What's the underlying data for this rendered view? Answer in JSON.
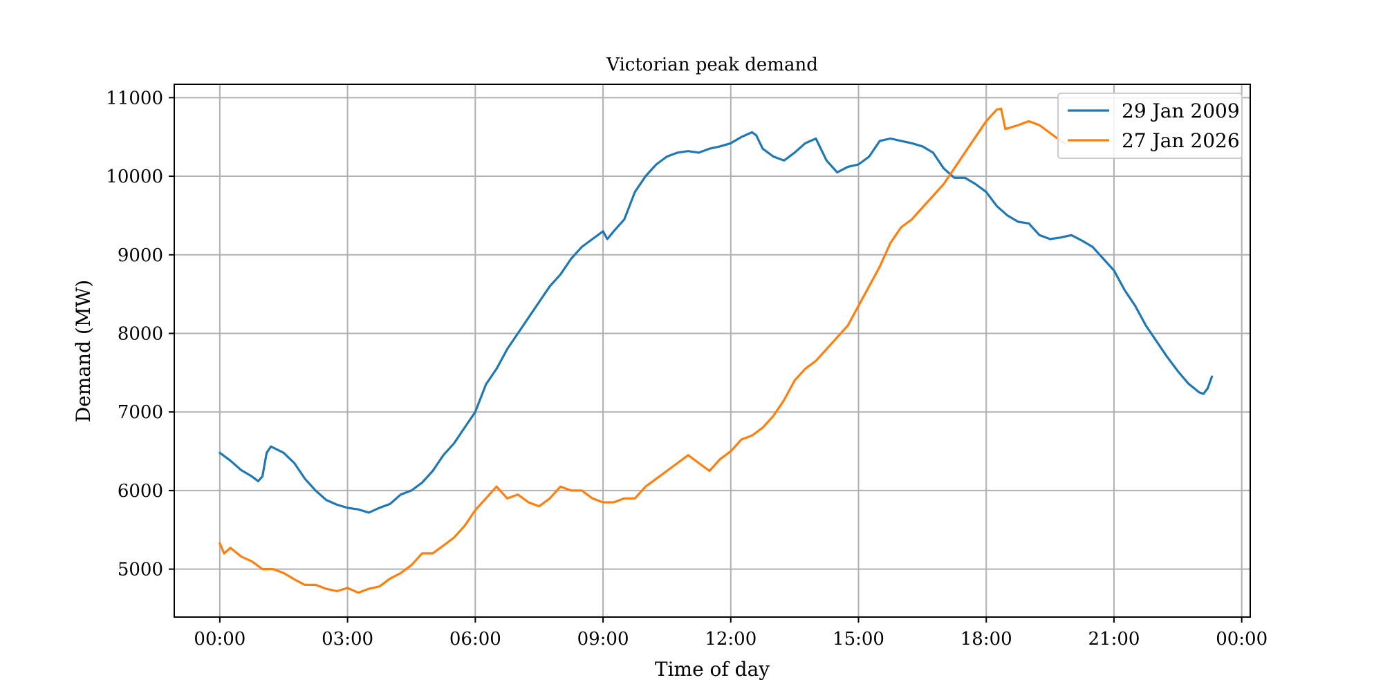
{
  "chart_data": {
    "type": "line",
    "title": "Victorian peak demand",
    "xlabel": "Time of day",
    "ylabel": "Demand (MW)",
    "x_tick_labels": [
      "00:00",
      "03:00",
      "06:00",
      "09:00",
      "12:00",
      "15:00",
      "18:00",
      "21:00",
      "00:00"
    ],
    "x_tick_hours": [
      0,
      3,
      6,
      9,
      12,
      15,
      18,
      21,
      24
    ],
    "xlim_hours": [
      -1.07,
      24.2
    ],
    "y_ticks": [
      5000,
      6000,
      7000,
      8000,
      9000,
      10000,
      11000
    ],
    "ylim": [
      4390,
      11170
    ],
    "grid": true,
    "legend_position": "top-right",
    "series": [
      {
        "name": "29 Jan 2009",
        "color": "#1f77b4",
        "points": [
          [
            0.0,
            6480
          ],
          [
            0.25,
            6380
          ],
          [
            0.5,
            6260
          ],
          [
            0.75,
            6180
          ],
          [
            0.9,
            6120
          ],
          [
            1.0,
            6180
          ],
          [
            1.1,
            6480
          ],
          [
            1.2,
            6560
          ],
          [
            1.5,
            6480
          ],
          [
            1.75,
            6350
          ],
          [
            2.0,
            6150
          ],
          [
            2.25,
            6000
          ],
          [
            2.5,
            5880
          ],
          [
            2.75,
            5820
          ],
          [
            3.0,
            5780
          ],
          [
            3.25,
            5760
          ],
          [
            3.5,
            5720
          ],
          [
            3.75,
            5780
          ],
          [
            4.0,
            5830
          ],
          [
            4.25,
            5950
          ],
          [
            4.5,
            6000
          ],
          [
            4.75,
            6100
          ],
          [
            5.0,
            6250
          ],
          [
            5.25,
            6450
          ],
          [
            5.5,
            6600
          ],
          [
            5.75,
            6800
          ],
          [
            6.0,
            7000
          ],
          [
            6.25,
            7350
          ],
          [
            6.5,
            7550
          ],
          [
            6.75,
            7800
          ],
          [
            7.0,
            8000
          ],
          [
            7.25,
            8200
          ],
          [
            7.5,
            8400
          ],
          [
            7.75,
            8600
          ],
          [
            8.0,
            8750
          ],
          [
            8.25,
            8950
          ],
          [
            8.5,
            9100
          ],
          [
            8.75,
            9200
          ],
          [
            9.0,
            9300
          ],
          [
            9.1,
            9200
          ],
          [
            9.25,
            9300
          ],
          [
            9.5,
            9450
          ],
          [
            9.75,
            9800
          ],
          [
            10.0,
            10000
          ],
          [
            10.25,
            10150
          ],
          [
            10.5,
            10250
          ],
          [
            10.75,
            10300
          ],
          [
            11.0,
            10320
          ],
          [
            11.25,
            10300
          ],
          [
            11.5,
            10350
          ],
          [
            11.75,
            10380
          ],
          [
            12.0,
            10420
          ],
          [
            12.25,
            10500
          ],
          [
            12.5,
            10560
          ],
          [
            12.6,
            10520
          ],
          [
            12.75,
            10350
          ],
          [
            13.0,
            10250
          ],
          [
            13.25,
            10200
          ],
          [
            13.5,
            10300
          ],
          [
            13.75,
            10420
          ],
          [
            14.0,
            10480
          ],
          [
            14.25,
            10200
          ],
          [
            14.5,
            10050
          ],
          [
            14.75,
            10120
          ],
          [
            15.0,
            10150
          ],
          [
            15.25,
            10250
          ],
          [
            15.5,
            10450
          ],
          [
            15.75,
            10480
          ],
          [
            16.0,
            10450
          ],
          [
            16.25,
            10420
          ],
          [
            16.5,
            10380
          ],
          [
            16.75,
            10300
          ],
          [
            17.0,
            10100
          ],
          [
            17.25,
            9980
          ],
          [
            17.5,
            9980
          ],
          [
            17.75,
            9900
          ],
          [
            18.0,
            9800
          ],
          [
            18.25,
            9620
          ],
          [
            18.5,
            9500
          ],
          [
            18.75,
            9420
          ],
          [
            19.0,
            9400
          ],
          [
            19.25,
            9250
          ],
          [
            19.5,
            9200
          ],
          [
            19.75,
            9220
          ],
          [
            20.0,
            9250
          ],
          [
            20.25,
            9180
          ],
          [
            20.5,
            9100
          ],
          [
            20.75,
            8950
          ],
          [
            21.0,
            8800
          ],
          [
            21.25,
            8550
          ],
          [
            21.5,
            8350
          ],
          [
            21.75,
            8100
          ],
          [
            22.0,
            7900
          ],
          [
            22.25,
            7700
          ],
          [
            22.5,
            7520
          ],
          [
            22.75,
            7360
          ],
          [
            23.0,
            7250
          ],
          [
            23.1,
            7230
          ],
          [
            23.2,
            7300
          ],
          [
            23.3,
            7450
          ]
        ]
      },
      {
        "name": "27 Jan 2026",
        "color": "#ff7f0e",
        "points": [
          [
            0.0,
            5330
          ],
          [
            0.1,
            5200
          ],
          [
            0.25,
            5270
          ],
          [
            0.5,
            5160
          ],
          [
            0.75,
            5100
          ],
          [
            1.0,
            5000
          ],
          [
            1.25,
            5000
          ],
          [
            1.5,
            4950
          ],
          [
            1.75,
            4870
          ],
          [
            2.0,
            4800
          ],
          [
            2.25,
            4800
          ],
          [
            2.5,
            4750
          ],
          [
            2.75,
            4720
          ],
          [
            3.0,
            4760
          ],
          [
            3.25,
            4700
          ],
          [
            3.5,
            4750
          ],
          [
            3.75,
            4780
          ],
          [
            4.0,
            4880
          ],
          [
            4.25,
            4950
          ],
          [
            4.5,
            5050
          ],
          [
            4.75,
            5200
          ],
          [
            5.0,
            5200
          ],
          [
            5.25,
            5300
          ],
          [
            5.5,
            5400
          ],
          [
            5.75,
            5550
          ],
          [
            6.0,
            5750
          ],
          [
            6.25,
            5900
          ],
          [
            6.5,
            6050
          ],
          [
            6.75,
            5900
          ],
          [
            7.0,
            5950
          ],
          [
            7.25,
            5850
          ],
          [
            7.5,
            5800
          ],
          [
            7.75,
            5900
          ],
          [
            8.0,
            6050
          ],
          [
            8.25,
            6000
          ],
          [
            8.5,
            6000
          ],
          [
            8.75,
            5900
          ],
          [
            9.0,
            5850
          ],
          [
            9.25,
            5850
          ],
          [
            9.5,
            5900
          ],
          [
            9.75,
            5900
          ],
          [
            10.0,
            6050
          ],
          [
            10.25,
            6150
          ],
          [
            10.5,
            6250
          ],
          [
            10.75,
            6350
          ],
          [
            11.0,
            6450
          ],
          [
            11.25,
            6350
          ],
          [
            11.5,
            6250
          ],
          [
            11.75,
            6400
          ],
          [
            12.0,
            6500
          ],
          [
            12.25,
            6650
          ],
          [
            12.5,
            6700
          ],
          [
            12.75,
            6800
          ],
          [
            13.0,
            6950
          ],
          [
            13.25,
            7150
          ],
          [
            13.5,
            7400
          ],
          [
            13.75,
            7550
          ],
          [
            14.0,
            7650
          ],
          [
            14.25,
            7800
          ],
          [
            14.5,
            7950
          ],
          [
            14.75,
            8100
          ],
          [
            15.0,
            8350
          ],
          [
            15.25,
            8600
          ],
          [
            15.5,
            8850
          ],
          [
            15.75,
            9150
          ],
          [
            16.0,
            9350
          ],
          [
            16.25,
            9450
          ],
          [
            16.5,
            9600
          ],
          [
            16.75,
            9750
          ],
          [
            17.0,
            9900
          ],
          [
            17.25,
            10100
          ],
          [
            17.5,
            10300
          ],
          [
            17.75,
            10500
          ],
          [
            18.0,
            10700
          ],
          [
            18.25,
            10850
          ],
          [
            18.35,
            10860
          ],
          [
            18.45,
            10600
          ],
          [
            18.75,
            10650
          ],
          [
            19.0,
            10700
          ],
          [
            19.25,
            10650
          ],
          [
            19.5,
            10550
          ],
          [
            19.75,
            10450
          ],
          [
            19.85,
            10420
          ]
        ]
      }
    ]
  }
}
